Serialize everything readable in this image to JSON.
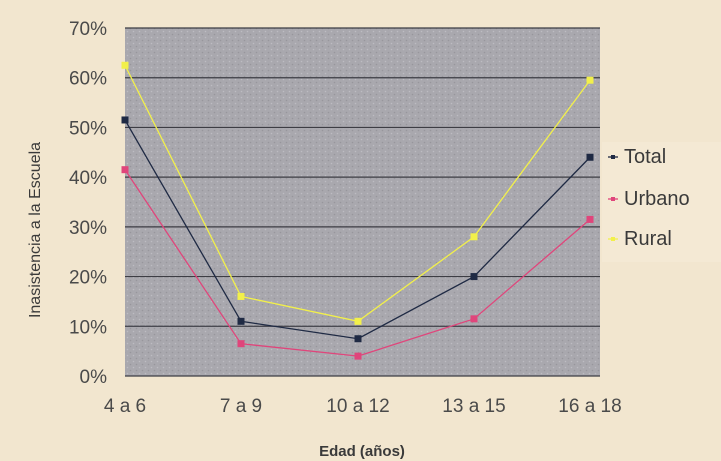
{
  "chart_data": {
    "type": "line",
    "categories": [
      "4 a 6",
      "7 a 9",
      "10 a 12",
      "13 a 15",
      "16 a 18"
    ],
    "series": [
      {
        "name": "Total",
        "values": [
          51.5,
          11,
          7.5,
          20,
          44
        ],
        "color": "#1f2a44"
      },
      {
        "name": "Urbano",
        "values": [
          41.5,
          6.5,
          4,
          11.5,
          31.5
        ],
        "color": "#e0457b"
      },
      {
        "name": "Rural",
        "values": [
          62.5,
          16,
          11,
          28,
          59.5
        ],
        "color": "#f2f04a"
      }
    ],
    "y_ticks": [
      "0%",
      "10%",
      "20%",
      "30%",
      "40%",
      "50%",
      "60%",
      "70%"
    ],
    "ylim": [
      0,
      70
    ],
    "xlabel": "Edad (años)",
    "ylabel": "Inasistencia a la Escuela",
    "legend": "right",
    "grid": true,
    "plot_background": "#a9a8ae"
  }
}
